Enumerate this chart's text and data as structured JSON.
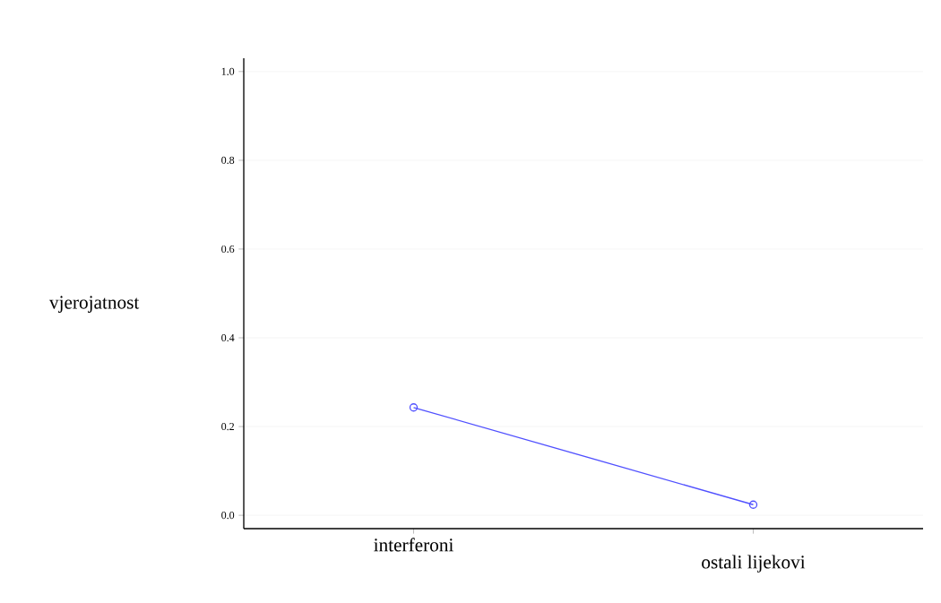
{
  "chart_data": {
    "type": "line",
    "ylabel": "vjerojatnost",
    "categories": [
      "interferoni",
      "ostali lijekovi"
    ],
    "series": [
      {
        "color": "#5050ff",
        "values": [
          0.243,
          0.024
        ]
      }
    ],
    "ylim": [
      -0.03,
      1.03
    ],
    "yticks": [
      {
        "value": 0,
        "label": "0.0"
      },
      0.2,
      0.4,
      0.6,
      0.8,
      {
        "value": 1,
        "label": "1.0"
      }
    ],
    "grid": "y",
    "marker": "circle",
    "line_style": "solid"
  }
}
